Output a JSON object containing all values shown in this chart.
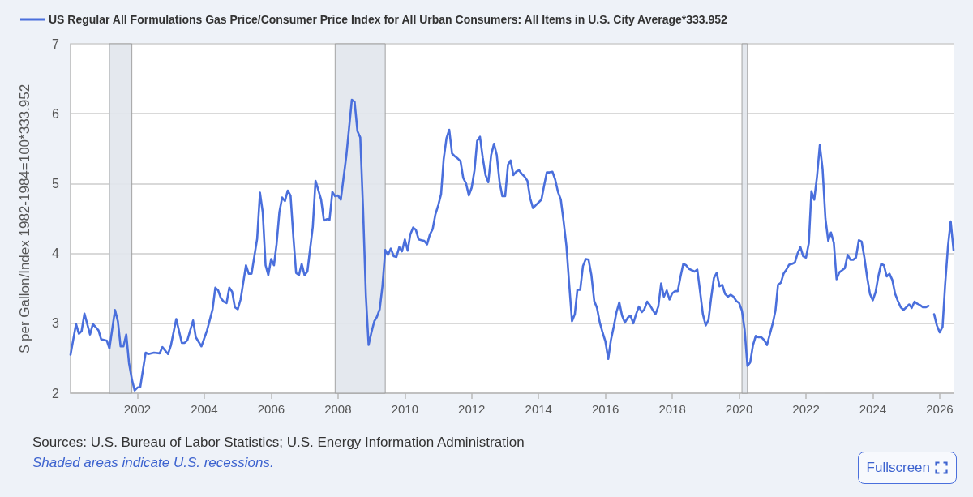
{
  "chart_data": {
    "type": "line",
    "ylabel": "$ per Gallon/Index 1982-1984=100*333.952",
    "annotations": [
      "Sources: U.S. Bureau of Labor Statistics; U.S. Energy Information Administration",
      "Shaded areas indicate U.S. recessions.",
      "Fullscreen"
    ],
    "x": [
      "2000-01",
      "2000-03",
      "2000-04",
      "2000-05",
      "2000-06",
      "2000-08",
      "2000-09",
      "2000-11",
      "2000-12",
      "2001-02",
      "2001-03",
      "2001-05",
      "2001-06",
      "2001-07",
      "2001-08",
      "2001-09",
      "2001-10",
      "2001-11",
      "2001-12",
      "2002-01",
      "2002-02",
      "2002-04",
      "2002-05",
      "2002-07",
      "2002-09",
      "2002-10",
      "2002-12",
      "2003-01",
      "2003-03",
      "2003-05",
      "2003-06",
      "2003-07",
      "2003-09",
      "2003-10",
      "2003-12",
      "2004-02",
      "2004-04",
      "2004-05",
      "2004-06",
      "2004-07",
      "2004-08",
      "2004-09",
      "2004-10",
      "2004-11",
      "2004-12",
      "2005-01",
      "2005-02",
      "2005-04",
      "2005-05",
      "2005-06",
      "2005-08",
      "2005-09",
      "2005-10",
      "2005-11",
      "2005-12",
      "2006-01",
      "2006-02",
      "2006-03",
      "2006-04",
      "2006-05",
      "2006-06",
      "2006-07",
      "2006-08",
      "2006-09",
      "2006-10",
      "2006-11",
      "2006-12",
      "2007-01",
      "2007-02",
      "2007-04",
      "2007-05",
      "2007-07",
      "2007-08",
      "2007-09",
      "2007-10",
      "2007-11",
      "2007-12",
      "2008-01",
      "2008-02",
      "2008-04",
      "2008-06",
      "2008-07",
      "2008-08",
      "2008-09",
      "2008-10",
      "2008-11",
      "2008-12",
      "2009-01",
      "2009-02",
      "2009-03",
      "2009-04",
      "2009-05",
      "2009-06",
      "2009-07",
      "2009-08",
      "2009-09",
      "2009-10",
      "2009-11",
      "2009-12",
      "2010-01",
      "2010-02",
      "2010-03",
      "2010-04",
      "2010-05",
      "2010-06",
      "2010-07",
      "2010-08",
      "2010-09",
      "2010-10",
      "2010-11",
      "2010-12",
      "2011-01",
      "2011-02",
      "2011-03",
      "2011-04",
      "2011-05",
      "2011-06",
      "2011-07",
      "2011-08",
      "2011-09",
      "2011-10",
      "2011-11",
      "2011-12",
      "2012-01",
      "2012-02",
      "2012-03",
      "2012-04",
      "2012-05",
      "2012-06",
      "2012-07",
      "2012-08",
      "2012-09",
      "2012-10",
      "2012-11",
      "2012-12",
      "2013-01",
      "2013-02",
      "2013-03",
      "2013-04",
      "2013-05",
      "2013-06",
      "2013-07",
      "2013-08",
      "2013-09",
      "2013-10",
      "2013-11",
      "2013-12",
      "2014-02",
      "2014-03",
      "2014-04",
      "2014-05",
      "2014-06",
      "2014-07",
      "2014-08",
      "2014-09",
      "2014-10",
      "2014-11",
      "2014-12",
      "2015-01",
      "2015-02",
      "2015-03",
      "2015-04",
      "2015-05",
      "2015-06",
      "2015-07",
      "2015-08",
      "2015-09",
      "2015-10",
      "2015-11",
      "2015-12",
      "2016-01",
      "2016-02",
      "2016-03",
      "2016-04",
      "2016-05",
      "2016-06",
      "2016-07",
      "2016-08",
      "2016-09",
      "2016-10",
      "2016-11",
      "2016-12",
      "2017-01",
      "2017-02",
      "2017-03",
      "2017-04",
      "2017-05",
      "2017-06",
      "2017-07",
      "2017-08",
      "2017-09",
      "2017-10",
      "2017-11",
      "2017-12",
      "2018-01",
      "2018-02",
      "2018-03",
      "2018-04",
      "2018-05",
      "2018-06",
      "2018-07",
      "2018-08",
      "2018-09",
      "2018-10",
      "2018-11",
      "2018-12",
      "2019-01",
      "2019-02",
      "2019-03",
      "2019-04",
      "2019-05",
      "2019-06",
      "2019-07",
      "2019-08",
      "2019-09",
      "2019-10",
      "2019-11",
      "2019-12",
      "2020-01",
      "2020-02",
      "2020-03",
      "2020-04",
      "2020-05",
      "2020-06",
      "2020-07",
      "2020-08",
      "2020-09",
      "2020-10",
      "2020-11",
      "2020-12",
      "2021-01",
      "2021-02",
      "2021-03",
      "2021-04",
      "2021-05",
      "2021-06",
      "2021-07",
      "2021-08",
      "2021-09",
      "2021-10",
      "2021-11",
      "2021-12",
      "2022-01",
      "2022-02",
      "2022-03",
      "2022-04",
      "2022-05",
      "2022-06",
      "2022-07",
      "2022-08",
      "2022-09",
      "2022-10",
      "2022-11",
      "2022-12",
      "2023-01",
      "2023-02",
      "2023-03",
      "2023-04",
      "2023-05",
      "2023-06",
      "2023-07",
      "2023-08",
      "2023-09",
      "2023-10",
      "2023-11",
      "2023-12",
      "2024-01",
      "2024-02",
      "2024-03",
      "2024-04",
      "2024-05",
      "2024-06",
      "2024-07",
      "2024-08",
      "2024-09",
      "2024-10",
      "2024-11",
      "2024-12",
      "2025-01",
      "2025-02",
      "2025-03",
      "2025-04",
      "2025-05",
      "2025-06",
      "2025-07",
      "2025-08",
      "2025-09",
      "2025-10",
      "2025-11",
      "2025-12",
      "2026-01",
      "2026-02",
      "2026-03",
      "2026-04",
      "2026-05",
      "2026-06"
    ],
    "series": [
      {
        "name": "US Regular All Formulations Gas Price/Consumer Price Index for All Urban Consumers: All Items in U.S. City Average*333.952",
        "color": "#4a6fdc",
        "values": [
          2.55,
          2.99,
          2.85,
          2.89,
          3.14,
          2.84,
          2.99,
          2.9,
          2.77,
          2.75,
          2.64,
          3.19,
          3.03,
          2.67,
          2.67,
          2.84,
          2.43,
          2.2,
          2.04,
          2.08,
          2.09,
          2.58,
          2.56,
          2.58,
          2.57,
          2.66,
          2.56,
          2.68,
          3.06,
          2.72,
          2.72,
          2.76,
          3.04,
          2.8,
          2.67,
          2.9,
          3.2,
          3.51,
          3.47,
          3.36,
          3.31,
          3.29,
          3.51,
          3.45,
          3.23,
          3.2,
          3.34,
          3.83,
          3.71,
          3.71,
          4.21,
          4.87,
          4.59,
          3.83,
          3.69,
          3.92,
          3.83,
          4.13,
          4.59,
          4.8,
          4.75,
          4.9,
          4.83,
          4.23,
          3.72,
          3.69,
          3.85,
          3.69,
          3.74,
          4.38,
          5.04,
          4.77,
          4.47,
          4.49,
          4.48,
          4.88,
          4.82,
          4.83,
          4.77,
          5.39,
          6.2,
          6.17,
          5.75,
          5.66,
          4.65,
          3.4,
          2.69,
          2.87,
          3.03,
          3.09,
          3.2,
          3.53,
          4.05,
          3.98,
          4.07,
          3.96,
          3.95,
          4.09,
          4.03,
          4.2,
          4.04,
          4.27,
          4.37,
          4.34,
          4.2,
          4.19,
          4.18,
          4.13,
          4.27,
          4.35,
          4.56,
          4.69,
          4.85,
          5.35,
          5.65,
          5.77,
          5.43,
          5.39,
          5.36,
          5.32,
          5.08,
          5.0,
          4.83,
          4.94,
          5.19,
          5.61,
          5.67,
          5.37,
          5.12,
          5.02,
          5.41,
          5.57,
          5.41,
          5.02,
          4.82,
          4.82,
          5.27,
          5.33,
          5.12,
          5.17,
          5.19,
          5.14,
          5.1,
          5.04,
          4.79,
          4.65,
          4.69,
          4.77,
          4.96,
          5.16,
          5.16,
          5.17,
          5.06,
          4.88,
          4.77,
          4.46,
          4.11,
          3.57,
          3.03,
          3.13,
          3.48,
          3.48,
          3.82,
          3.92,
          3.91,
          3.69,
          3.32,
          3.22,
          3.01,
          2.87,
          2.74,
          2.49,
          2.76,
          2.95,
          3.16,
          3.3,
          3.11,
          3.01,
          3.08,
          3.11,
          3.0,
          3.13,
          3.24,
          3.16,
          3.2,
          3.31,
          3.26,
          3.19,
          3.13,
          3.24,
          3.57,
          3.38,
          3.47,
          3.34,
          3.43,
          3.46,
          3.46,
          3.67,
          3.85,
          3.83,
          3.78,
          3.76,
          3.74,
          3.77,
          3.45,
          3.13,
          2.97,
          3.05,
          3.36,
          3.65,
          3.72,
          3.53,
          3.55,
          3.42,
          3.38,
          3.41,
          3.38,
          3.32,
          3.29,
          3.18,
          2.91,
          2.39,
          2.44,
          2.69,
          2.82,
          2.8,
          2.8,
          2.76,
          2.69,
          2.84,
          2.99,
          3.18,
          3.55,
          3.58,
          3.71,
          3.77,
          3.84,
          3.85,
          3.87,
          4.0,
          4.09,
          3.96,
          3.94,
          4.15,
          4.89,
          4.77,
          5.1,
          5.55,
          5.21,
          4.5,
          4.18,
          4.3,
          4.15,
          3.63,
          3.73,
          3.76,
          3.79,
          3.98,
          3.91,
          3.91,
          3.94,
          4.19,
          4.17,
          3.94,
          3.65,
          3.42,
          3.33,
          3.45,
          3.67,
          3.85,
          3.83,
          3.67,
          3.71,
          3.62,
          3.42,
          3.32,
          3.23,
          3.19,
          3.23,
          3.27,
          3.22,
          3.31,
          3.28,
          3.26,
          3.23,
          3.23,
          3.25,
          null,
          3.13,
          2.97,
          2.87,
          2.95,
          3.55,
          4.1,
          4.46,
          4.05
        ]
      }
    ],
    "xlim": [
      "2000-01",
      "2026-06"
    ],
    "xticks": [
      "2002",
      "2004",
      "2006",
      "2008",
      "2010",
      "2012",
      "2014",
      "2016",
      "2018",
      "2020",
      "2022",
      "2024",
      "2026"
    ],
    "ylim": [
      2,
      7
    ],
    "yticks": [
      2,
      3,
      4,
      5,
      6,
      7
    ],
    "grid": "y",
    "legend": "top left",
    "bands": [
      {
        "axis": "x",
        "from": "2001-03",
        "to": "2001-11",
        "color": "#e1e5ec"
      },
      {
        "axis": "x",
        "from": "2007-12",
        "to": "2009-06",
        "color": "#e1e5ec"
      },
      {
        "axis": "x",
        "from": "2020-02",
        "to": "2020-04",
        "color": "#e1e5ec"
      }
    ]
  }
}
